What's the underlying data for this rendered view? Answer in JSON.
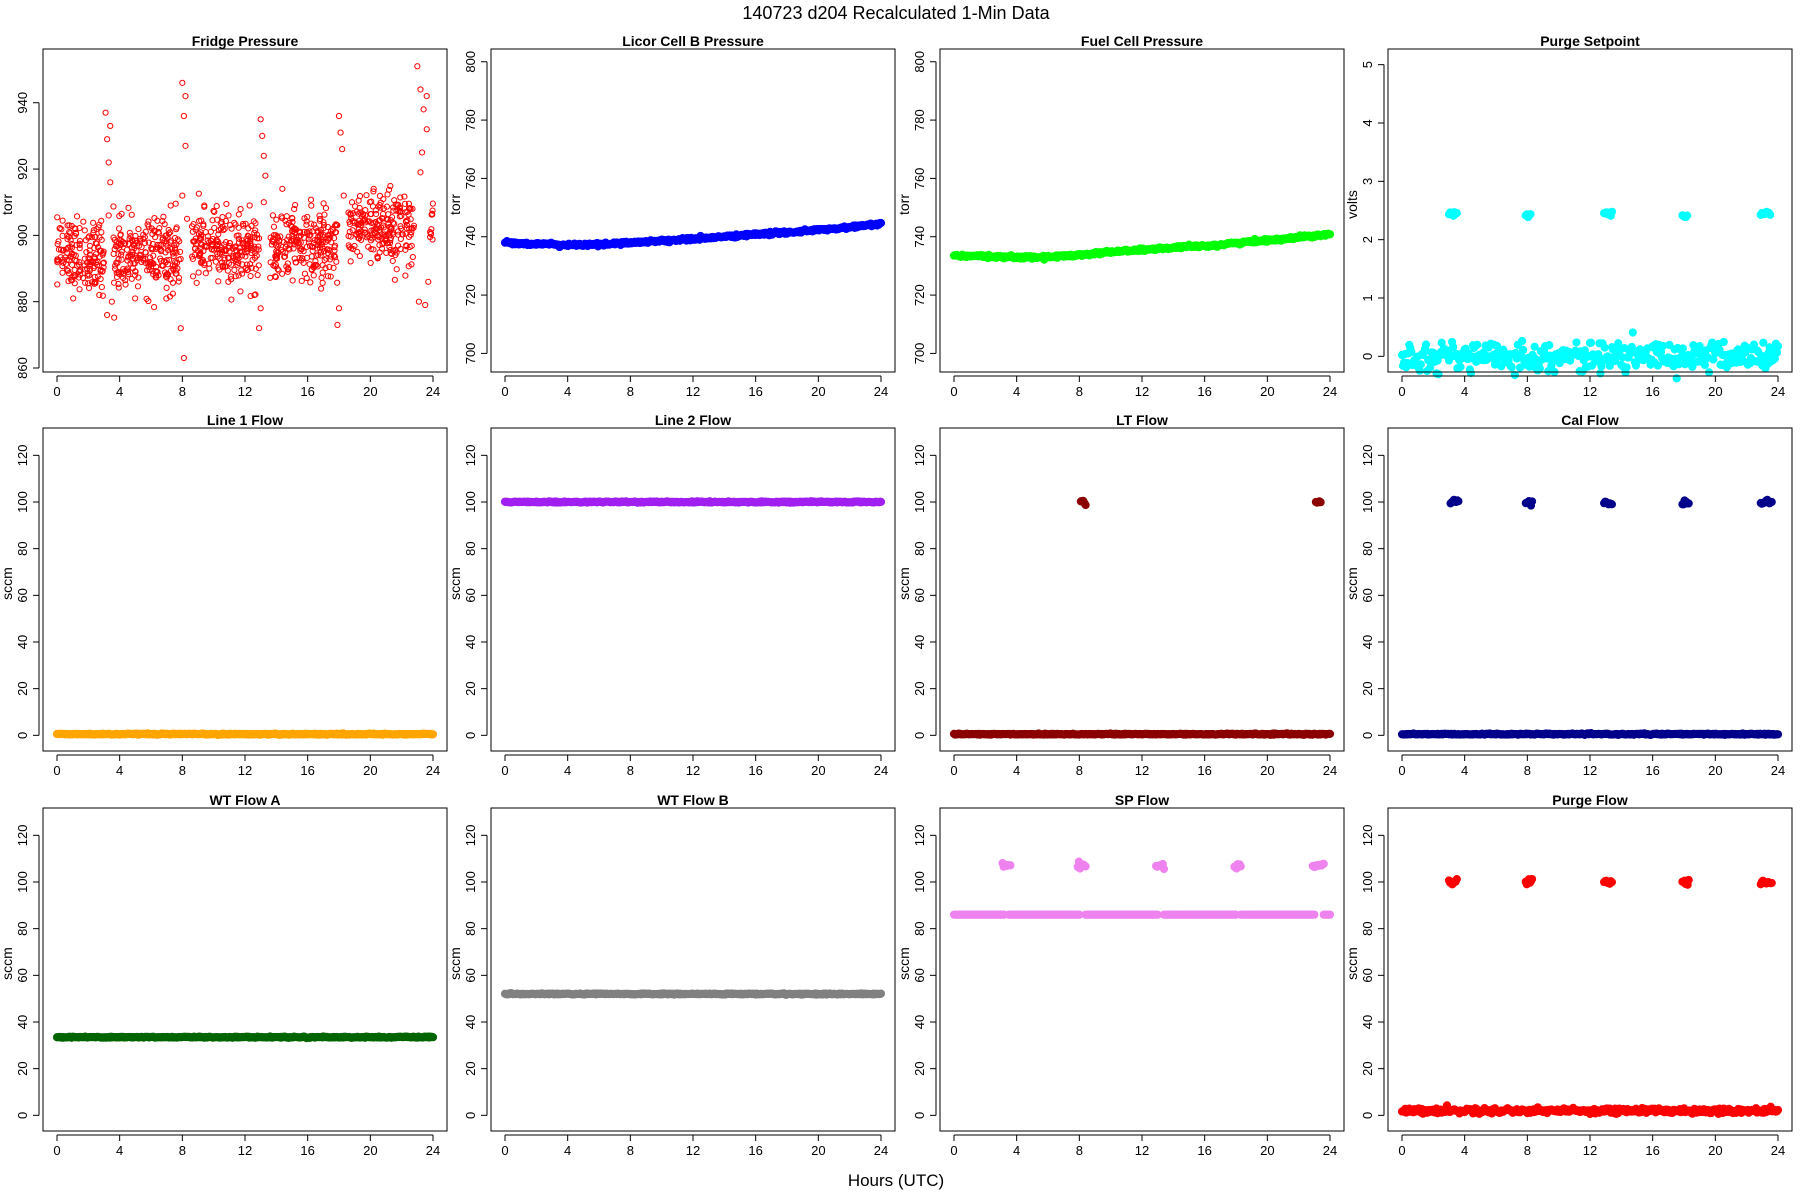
{
  "figure": {
    "title": "140723   d204   Recalculated 1-Min Data",
    "xlabel": "Hours (UTC)"
  },
  "chart_data": [
    {
      "type": "scatter",
      "title": "Fridge Pressure",
      "ylabel": "torr",
      "color": "#ff0000",
      "marker": "open-circle",
      "xlim": [
        0,
        24
      ],
      "xticks": [
        0,
        4,
        8,
        12,
        16,
        20,
        24
      ],
      "ylim": [
        860,
        955
      ],
      "yticks": [
        860,
        880,
        900,
        920,
        940
      ],
      "segments": [
        {
          "x_from": 0,
          "x_to": 3.0,
          "center": 894,
          "spread": 12
        },
        {
          "x_from": 3.6,
          "x_to": 7.9,
          "center": 894,
          "spread": 12
        },
        {
          "x_from": 8.6,
          "x_to": 12.9,
          "center": 896,
          "spread": 12
        },
        {
          "x_from": 13.6,
          "x_to": 17.9,
          "center": 897,
          "spread": 12
        },
        {
          "x_from": 18.6,
          "x_to": 22.8,
          "center": 902,
          "spread": 12
        },
        {
          "x_from": 23.8,
          "x_to": 24,
          "center": 902,
          "spread": 12
        }
      ],
      "points": [
        {
          "x": 3.1,
          "y": 937
        },
        {
          "x": 3.2,
          "y": 929
        },
        {
          "x": 3.3,
          "y": 922
        },
        {
          "x": 3.4,
          "y": 916
        },
        {
          "x": 3.2,
          "y": 876
        },
        {
          "x": 3.5,
          "y": 880
        },
        {
          "x": 3.3,
          "y": 906
        },
        {
          "x": 3.4,
          "y": 933
        },
        {
          "x": 8.0,
          "y": 946
        },
        {
          "x": 8.1,
          "y": 936
        },
        {
          "x": 8.2,
          "y": 927
        },
        {
          "x": 8.0,
          "y": 912
        },
        {
          "x": 7.9,
          "y": 872
        },
        {
          "x": 8.1,
          "y": 863
        },
        {
          "x": 8.3,
          "y": 905
        },
        {
          "x": 8.2,
          "y": 942
        },
        {
          "x": 13.0,
          "y": 935
        },
        {
          "x": 13.1,
          "y": 930
        },
        {
          "x": 13.2,
          "y": 924
        },
        {
          "x": 13.3,
          "y": 918
        },
        {
          "x": 12.9,
          "y": 872
        },
        {
          "x": 13.0,
          "y": 878
        },
        {
          "x": 13.2,
          "y": 910
        },
        {
          "x": 12.6,
          "y": 882
        },
        {
          "x": 18.0,
          "y": 936
        },
        {
          "x": 18.1,
          "y": 931
        },
        {
          "x": 18.2,
          "y": 926
        },
        {
          "x": 17.9,
          "y": 873
        },
        {
          "x": 18.0,
          "y": 878
        },
        {
          "x": 18.3,
          "y": 912
        },
        {
          "x": 23.0,
          "y": 951
        },
        {
          "x": 23.2,
          "y": 944
        },
        {
          "x": 23.4,
          "y": 938
        },
        {
          "x": 23.6,
          "y": 932
        },
        {
          "x": 23.3,
          "y": 925
        },
        {
          "x": 23.1,
          "y": 880
        },
        {
          "x": 23.5,
          "y": 879
        },
        {
          "x": 23.7,
          "y": 886
        },
        {
          "x": 23.2,
          "y": 919
        },
        {
          "x": 23.6,
          "y": 942
        }
      ]
    },
    {
      "type": "line",
      "title": "Licor Cell B Pressure",
      "ylabel": "torr",
      "color": "#0000ff",
      "xlim": [
        0,
        24
      ],
      "xticks": [
        0,
        4,
        8,
        12,
        16,
        20,
        24
      ],
      "ylim": [
        695,
        803
      ],
      "yticks": [
        700,
        720,
        740,
        760,
        780,
        800
      ],
      "x": [
        0,
        2,
        4,
        6,
        8,
        10,
        12,
        14,
        16,
        18,
        20,
        22,
        24
      ],
      "y": [
        738,
        737.5,
        737.2,
        737.3,
        738,
        738.6,
        739.2,
        740,
        740.8,
        741.5,
        742.3,
        743.2,
        744.5
      ]
    },
    {
      "type": "line",
      "title": "Fuel Cell Pressure",
      "ylabel": "torr",
      "color": "#00ff00",
      "xlim": [
        0,
        24
      ],
      "xticks": [
        0,
        4,
        8,
        12,
        16,
        20,
        24
      ],
      "ylim": [
        695,
        803
      ],
      "yticks": [
        700,
        720,
        740,
        760,
        780,
        800
      ],
      "x": [
        0,
        2,
        4,
        6,
        8,
        10,
        12,
        14,
        16,
        18,
        20,
        22,
        24
      ],
      "y": [
        733.5,
        733.2,
        733,
        733,
        733.8,
        734.8,
        735.5,
        736.2,
        736.8,
        737.8,
        738.8,
        739.8,
        741
      ]
    },
    {
      "type": "scatter",
      "title": "Purge Setpoint",
      "ylabel": "volts",
      "color": "#00ffff",
      "marker": "filled",
      "xlim": [
        0,
        24
      ],
      "xticks": [
        0,
        4,
        8,
        12,
        16,
        20,
        24
      ],
      "ylim": [
        -0.2,
        5.2
      ],
      "yticks": [
        0,
        1,
        2,
        3,
        4,
        5
      ],
      "baseline": {
        "y": 0,
        "x_from": 0,
        "x_to": 24
      },
      "clusters": [
        {
          "x_from": 3.0,
          "x_to": 3.5,
          "y": 2.45
        },
        {
          "x_from": 7.9,
          "x_to": 8.2,
          "y": 2.42
        },
        {
          "x_from": 12.9,
          "x_to": 13.4,
          "y": 2.45
        },
        {
          "x_from": 17.9,
          "x_to": 18.2,
          "y": 2.41
        },
        {
          "x_from": 22.9,
          "x_to": 23.5,
          "y": 2.45
        }
      ]
    },
    {
      "type": "scatter",
      "title": "Line 1 Flow",
      "ylabel": "sccm",
      "color": "#ffa500",
      "marker": "filled",
      "xlim": [
        0,
        24
      ],
      "xticks": [
        0,
        4,
        8,
        12,
        16,
        20,
        24
      ],
      "ylim": [
        -5,
        130
      ],
      "yticks": [
        0,
        20,
        40,
        60,
        80,
        100,
        120
      ],
      "baseline": {
        "y": 0.5,
        "x_from": 0,
        "x_to": 24
      },
      "clusters": []
    },
    {
      "type": "scatter",
      "title": "Line 2 Flow",
      "ylabel": "sccm",
      "color": "#a020f0",
      "marker": "filled",
      "xlim": [
        0,
        24
      ],
      "xticks": [
        0,
        4,
        8,
        12,
        16,
        20,
        24
      ],
      "ylim": [
        -5,
        130
      ],
      "yticks": [
        0,
        20,
        40,
        60,
        80,
        100,
        120
      ],
      "baseline": {
        "y": 100,
        "x_from": 0,
        "x_to": 24
      },
      "clusters": []
    },
    {
      "type": "scatter",
      "title": "LT Flow",
      "ylabel": "sccm",
      "color": "#8b0000",
      "marker": "filled",
      "xlim": [
        0,
        24
      ],
      "xticks": [
        0,
        4,
        8,
        12,
        16,
        20,
        24
      ],
      "ylim": [
        -5,
        130
      ],
      "yticks": [
        0,
        20,
        40,
        60,
        80,
        100,
        120
      ],
      "baseline": {
        "y": 0.5,
        "x_from": 0,
        "x_to": 24
      },
      "clusters": [
        {
          "x_from": 8.1,
          "x_to": 8.4,
          "y": 100
        },
        {
          "x_from": 23.1,
          "x_to": 23.4,
          "y": 100
        }
      ]
    },
    {
      "type": "scatter",
      "title": "Cal Flow",
      "ylabel": "sccm",
      "color": "#00008b",
      "marker": "filled",
      "xlim": [
        0,
        24
      ],
      "xticks": [
        0,
        4,
        8,
        12,
        16,
        20,
        24
      ],
      "ylim": [
        -5,
        130
      ],
      "yticks": [
        0,
        20,
        40,
        60,
        80,
        100,
        120
      ],
      "baseline": {
        "y": 0.5,
        "x_from": 0,
        "x_to": 24
      },
      "clusters": [
        {
          "x_from": 3.1,
          "x_to": 3.6,
          "y": 100
        },
        {
          "x_from": 7.9,
          "x_to": 8.3,
          "y": 100
        },
        {
          "x_from": 12.9,
          "x_to": 13.4,
          "y": 100
        },
        {
          "x_from": 17.9,
          "x_to": 18.3,
          "y": 100
        },
        {
          "x_from": 22.9,
          "x_to": 23.6,
          "y": 100
        }
      ]
    },
    {
      "type": "scatter",
      "title": "WT Flow A",
      "ylabel": "sccm",
      "color": "#006400",
      "marker": "filled",
      "xlim": [
        0,
        24
      ],
      "xticks": [
        0,
        4,
        8,
        12,
        16,
        20,
        24
      ],
      "ylim": [
        -5,
        130
      ],
      "yticks": [
        0,
        20,
        40,
        60,
        80,
        100,
        120
      ],
      "baseline": {
        "y": 33.5,
        "x_from": 0,
        "x_to": 24
      },
      "clusters": []
    },
    {
      "type": "scatter",
      "title": "WT Flow B",
      "ylabel": "sccm",
      "color": "#808080",
      "marker": "filled",
      "xlim": [
        0,
        24
      ],
      "xticks": [
        0,
        4,
        8,
        12,
        16,
        20,
        24
      ],
      "ylim": [
        -5,
        130
      ],
      "yticks": [
        0,
        20,
        40,
        60,
        80,
        100,
        120
      ],
      "baseline": {
        "y": 52,
        "x_from": 0,
        "x_to": 24
      },
      "clusters": []
    },
    {
      "type": "scatter",
      "title": "SP Flow",
      "ylabel": "sccm",
      "color": "#ee82ee",
      "marker": "filled",
      "xlim": [
        0,
        24
      ],
      "xticks": [
        0,
        4,
        8,
        12,
        16,
        20,
        24
      ],
      "ylim": [
        -5,
        130
      ],
      "yticks": [
        0,
        20,
        40,
        60,
        80,
        100,
        120
      ],
      "segments_flat": [
        {
          "x_from": 0,
          "x_to": 3.2,
          "y": 86
        },
        {
          "x_from": 3.5,
          "x_to": 8.0,
          "y": 86
        },
        {
          "x_from": 8.4,
          "x_to": 13.0,
          "y": 86
        },
        {
          "x_from": 13.4,
          "x_to": 18.0,
          "y": 86
        },
        {
          "x_from": 18.3,
          "x_to": 23.0,
          "y": 86
        },
        {
          "x_from": 23.6,
          "x_to": 24,
          "y": 86
        }
      ],
      "clusters": [
        {
          "x_from": 3.1,
          "x_to": 3.6,
          "y": 107
        },
        {
          "x_from": 7.9,
          "x_to": 8.4,
          "y": 107
        },
        {
          "x_from": 12.9,
          "x_to": 13.4,
          "y": 107
        },
        {
          "x_from": 17.9,
          "x_to": 18.3,
          "y": 107
        },
        {
          "x_from": 22.9,
          "x_to": 23.6,
          "y": 107
        }
      ]
    },
    {
      "type": "scatter",
      "title": "Purge Flow",
      "ylabel": "sccm",
      "color": "#ff0000",
      "marker": "filled",
      "xlim": [
        0,
        24
      ],
      "xticks": [
        0,
        4,
        8,
        12,
        16,
        20,
        24
      ],
      "ylim": [
        -5,
        130
      ],
      "yticks": [
        0,
        20,
        40,
        60,
        80,
        100,
        120
      ],
      "baseline": {
        "y": 2,
        "x_from": 0,
        "x_to": 24
      },
      "clusters": [
        {
          "x_from": 3.0,
          "x_to": 3.5,
          "y": 100
        },
        {
          "x_from": 7.9,
          "x_to": 8.3,
          "y": 100
        },
        {
          "x_from": 12.9,
          "x_to": 13.4,
          "y": 100
        },
        {
          "x_from": 17.9,
          "x_to": 18.3,
          "y": 100
        },
        {
          "x_from": 22.9,
          "x_to": 23.6,
          "y": 100
        }
      ]
    }
  ]
}
